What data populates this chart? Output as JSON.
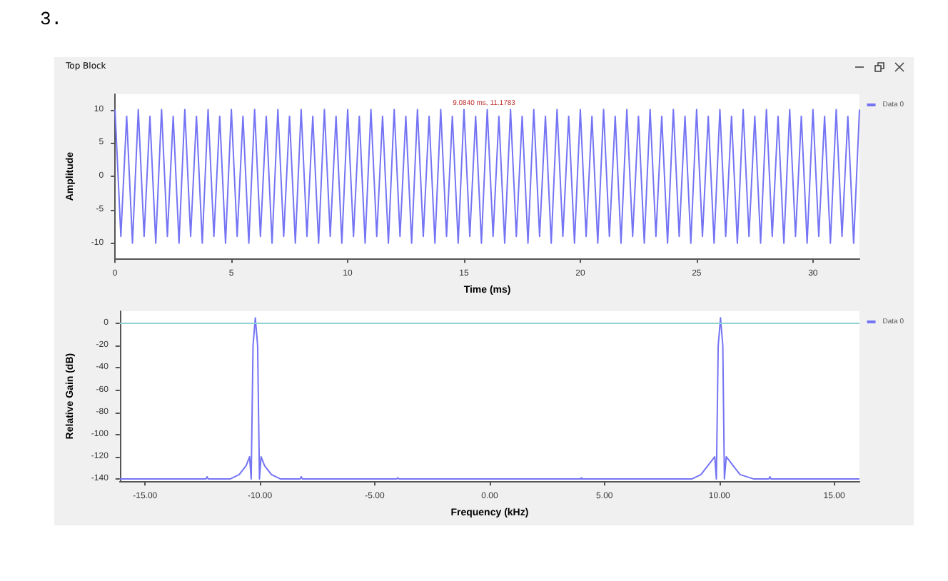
{
  "chart_data": [
    {
      "type": "line",
      "title": "3.",
      "subtitle": "Top Block",
      "xlabel": "Time (ms)",
      "ylabel": "Amplitude",
      "annotations": [
        "9.0840 ms, 11.1783"
      ],
      "legend": "top right",
      "xlim": [
        0,
        32
      ],
      "xticks": [
        0,
        5,
        10,
        15,
        20,
        25,
        30
      ],
      "ylim": [
        -12.3,
        12.3
      ],
      "yticks": [
        -10,
        -5,
        0,
        5,
        10
      ],
      "series": [
        {
          "name": "Data 0",
          "color": "#7474f4",
          "x": [
            0,
            0.25,
            0.5,
            0.75,
            1,
            1.25,
            1.5,
            1.75,
            2,
            2.25,
            2.5,
            2.75,
            3,
            3.25,
            3.5,
            3.75,
            4,
            4.25,
            4.5,
            4.75,
            5,
            5.25,
            5.5,
            5.75,
            6,
            6.25,
            6.5,
            6.75,
            7,
            7.25,
            7.5,
            7.75,
            8,
            8.25,
            8.5,
            8.75,
            9,
            9.25,
            9.5,
            9.75,
            10,
            10.25,
            10.5,
            10.75,
            11,
            11.25,
            11.5,
            11.75,
            12,
            12.25,
            12.5,
            12.75,
            13,
            13.25,
            13.5,
            13.75,
            14,
            14.25,
            14.5,
            14.75,
            15,
            15.25,
            15.5,
            15.75,
            16,
            16.25,
            16.5,
            16.75,
            17,
            17.25,
            17.5,
            17.75,
            18,
            18.25,
            18.5,
            18.75,
            19,
            19.25,
            19.5,
            19.75,
            20,
            20.25,
            20.5,
            20.75,
            21,
            21.25,
            21.5,
            21.75,
            22,
            22.25,
            22.5,
            22.75,
            23,
            23.25,
            23.5,
            23.75,
            24,
            24.25,
            24.5,
            24.75,
            25,
            25.25,
            25.5,
            25.75,
            26,
            26.25,
            26.5,
            26.75,
            27,
            27.25,
            27.5,
            27.75,
            28,
            28.25,
            28.5,
            28.75,
            29,
            29.25,
            29.5,
            29.75,
            30,
            30.25,
            30.5,
            30.75,
            31,
            31.25,
            31.5,
            31.75,
            32
          ],
          "values": [
            10,
            -9,
            9,
            -10,
            10,
            -9,
            9,
            -10,
            10,
            -9,
            9,
            -10,
            10,
            -9,
            9,
            -10,
            10,
            -9,
            9,
            -10,
            10,
            -9,
            9,
            -10,
            10,
            -9,
            9,
            -10,
            10,
            -9,
            9,
            -10,
            10,
            -9,
            9,
            -10,
            10,
            -9,
            9,
            -10,
            10,
            -9,
            9,
            -10,
            10,
            -9,
            9,
            -10,
            10,
            -9,
            9,
            -10,
            10,
            -9,
            9,
            -10,
            10,
            -9,
            9,
            -10,
            10,
            -9,
            9,
            -10,
            10,
            -9,
            9,
            -10,
            10,
            -9,
            9,
            -10,
            10,
            -9,
            9,
            -10,
            10,
            -9,
            9,
            -10,
            10,
            -9,
            9,
            -10,
            10,
            -9,
            9,
            -10,
            10,
            -9,
            9,
            -10,
            10,
            -9,
            9,
            -10,
            10,
            -9,
            9,
            -10,
            10,
            -9,
            9,
            -10,
            10,
            -9,
            9,
            -10,
            10,
            -9,
            9,
            -10,
            10,
            -9,
            9,
            -10,
            10,
            -9,
            9,
            -10,
            10,
            -9,
            9,
            -10,
            10,
            -9,
            9,
            -10,
            10
          ]
        }
      ]
    },
    {
      "type": "line",
      "xlabel": "Frequency (kHz)",
      "ylabel": "Relative Gain (dB)",
      "legend": "top right",
      "xlim": [
        -16.1,
        16.1
      ],
      "xticks": [
        {
          "value": -15,
          "label": "-15.00"
        },
        {
          "value": -10,
          "label": "-10.00"
        },
        {
          "value": -5,
          "label": "-5.00"
        },
        {
          "value": 0,
          "label": "0.00"
        },
        {
          "value": 5,
          "label": "5.00"
        },
        {
          "value": 10,
          "label": "10.00"
        },
        {
          "value": 15,
          "label": "15.00"
        }
      ],
      "ylim": [
        -142,
        11
      ],
      "yticks": [
        -140,
        -120,
        -100,
        -80,
        -60,
        -40,
        -20,
        0
      ],
      "ref_lines": [
        {
          "axis": "y",
          "value": 0,
          "color": "#8fd3d3"
        }
      ],
      "series": [
        {
          "name": "Data 0",
          "color": "#7474f4",
          "x": [
            -16.1,
            -12.35,
            -12.3,
            -12.25,
            -11.3,
            -10.9,
            -10.6,
            -10.45,
            -10.38,
            -10.3,
            -10.2,
            -10.1,
            -10.02,
            -9.95,
            -9.8,
            -9.5,
            -9.1,
            -8.25,
            -8.2,
            -8.15,
            -4.05,
            -4,
            -3.95,
            4.05,
            4,
            3.95,
            8.8,
            9.2,
            9.5,
            9.8,
            9.87,
            9.95,
            10.05,
            10.15,
            10.22,
            10.3,
            10.6,
            10.9,
            11.5,
            12.15,
            12.2,
            12.25,
            16.1
          ],
          "values": [
            -140,
            -140,
            -138,
            -140,
            -140,
            -136,
            -128,
            -120,
            -140,
            -20,
            5,
            -20,
            -140,
            -120,
            -128,
            -136,
            -140,
            -140,
            -138,
            -140,
            -140,
            -139,
            -140,
            -140,
            -139,
            -140,
            -140,
            -136,
            -128,
            -120,
            -140,
            -20,
            5,
            -20,
            -140,
            -120,
            -128,
            -136,
            -140,
            -140,
            -138,
            -140,
            -140
          ]
        }
      ]
    }
  ]
}
